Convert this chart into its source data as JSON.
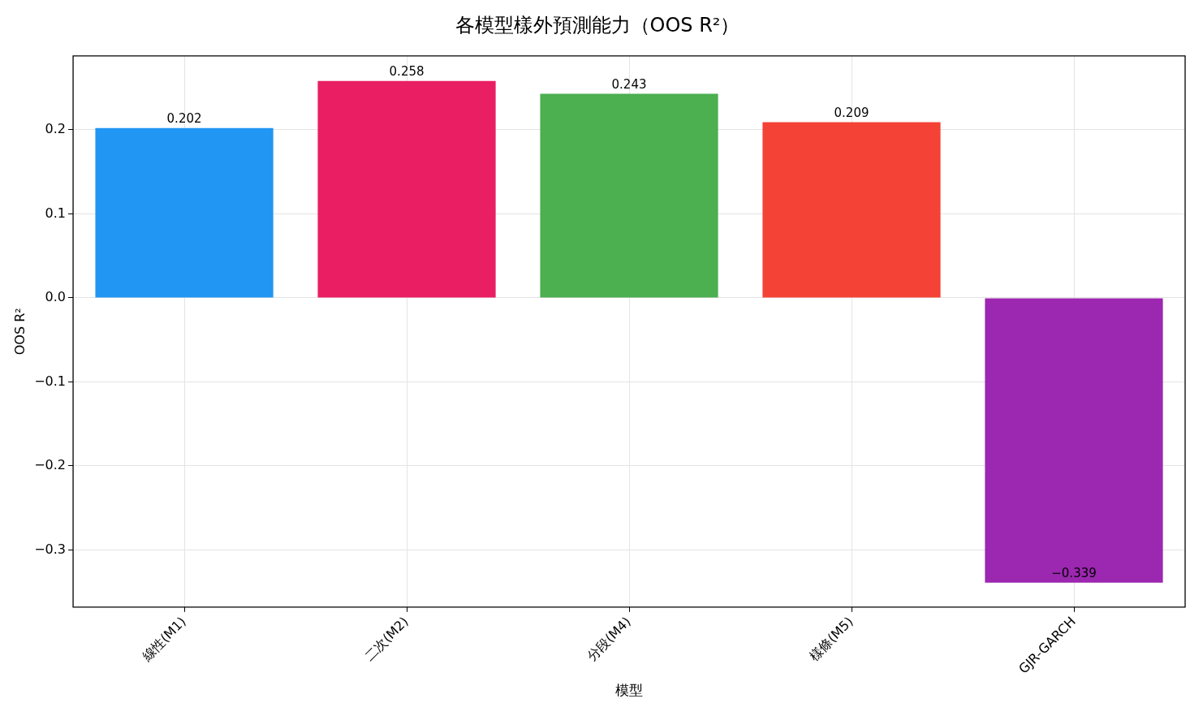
{
  "chart_data": {
    "type": "bar",
    "title": "各模型樣外預測能力（OOS R²）",
    "xlabel": "模型",
    "ylabel": "OOS R²",
    "categories": [
      "線性(M1)",
      "二次(M2)",
      "分段(M4)",
      "樣條(M5)",
      "GJR-GARCH"
    ],
    "values": [
      0.202,
      0.258,
      0.243,
      0.209,
      -0.339
    ],
    "colors": [
      "#2196f3",
      "#e91e63",
      "#4caf50",
      "#f44336",
      "#9c27b0"
    ],
    "value_labels": [
      "0.202",
      "0.258",
      "0.243",
      "0.209",
      "−0.339"
    ],
    "ylim": [
      -0.368,
      0.288
    ],
    "yticks": [
      {
        "value": -0.3,
        "label": "−0.3"
      },
      {
        "value": -0.2,
        "label": "−0.2"
      },
      {
        "value": -0.1,
        "label": "−0.1"
      },
      {
        "value": 0,
        "label": "0.0"
      },
      0.1,
      0.2
    ],
    "grid": true,
    "legend": false
  }
}
